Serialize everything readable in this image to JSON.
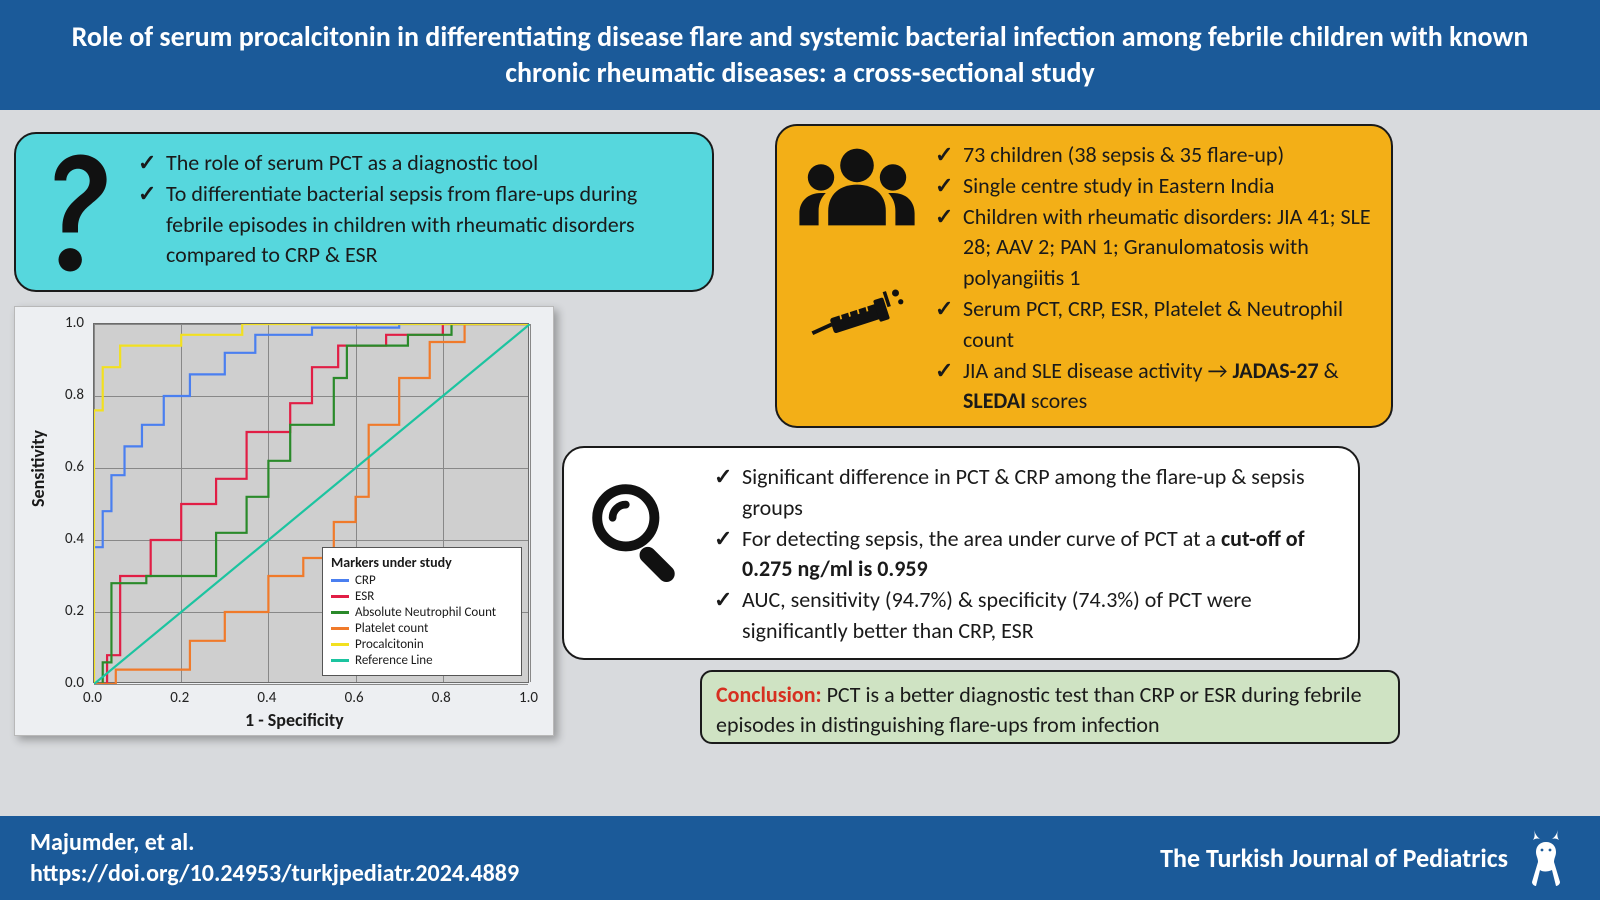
{
  "header": {
    "title": "Role of serum procalcitonin in differentiating disease flare and systemic bacterial infection among febrile children with known chronic rheumatic diseases: a cross-sectional study"
  },
  "question": {
    "lines": [
      "The role of serum PCT as a diagnostic tool",
      "To differentiate bacterial sepsis from flare-ups during febrile episodes in children with rheumatic disorders compared to CRP & ESR"
    ]
  },
  "study": {
    "lines": [
      "73 children (38 sepsis & 35 flare-up)",
      "Single centre study in Eastern India",
      "Children with rheumatic disorders: JIA 41; SLE 28; AAV 2; PAN 1; Granulomatosis with polyangiitis 1",
      "Serum PCT, CRP, ESR, Platelet & Neutrophil count",
      "JIA and SLE disease activity → JADAS-27 & SLEDAI scores"
    ],
    "bold5a": "JADAS-27",
    "bold5b": "SLEDAI"
  },
  "findings": {
    "lines": [
      "Significant difference in PCT & CRP among the flare-up & sepsis groups",
      "For detecting sepsis, the area under curve of PCT at a cut-off of 0.275 ng/ml is 0.959",
      "AUC, sensitivity (94.7%) & specificity (74.3%) of PCT were significantly better than CRP, ESR"
    ],
    "bold2": "cut-off of 0.275 ng/ml is 0.959"
  },
  "conclusion": {
    "label": "Conclusion:",
    "text": "PCT is a better diagnostic test than CRP or ESR during febrile episodes in distinguishing flare-ups from infection"
  },
  "footer": {
    "author": "Majumder, et al.",
    "doi": "https://doi.org/10.24953/turkjpediatr.2024.4889",
    "journal": "The Turkish Journal of Pediatrics"
  },
  "chart": {
    "type": "roc_step_lines",
    "xlabel": "1 - Specificity",
    "ylabel": "Sensitivity",
    "xlim": [
      0,
      1
    ],
    "ylim": [
      0,
      1
    ],
    "tick_step": 0.2,
    "background_color": "#cfcfcf",
    "grid_color": "#888888",
    "legend_title": "Markers under study",
    "series": [
      {
        "name": "CRP",
        "color": "#4a7ff0",
        "points": [
          [
            0,
            0.38
          ],
          [
            0.02,
            0.38
          ],
          [
            0.02,
            0.48
          ],
          [
            0.04,
            0.48
          ],
          [
            0.04,
            0.58
          ],
          [
            0.07,
            0.58
          ],
          [
            0.07,
            0.66
          ],
          [
            0.11,
            0.66
          ],
          [
            0.11,
            0.72
          ],
          [
            0.16,
            0.72
          ],
          [
            0.16,
            0.8
          ],
          [
            0.22,
            0.8
          ],
          [
            0.22,
            0.86
          ],
          [
            0.3,
            0.86
          ],
          [
            0.3,
            0.92
          ],
          [
            0.37,
            0.92
          ],
          [
            0.37,
            0.97
          ],
          [
            0.5,
            0.97
          ],
          [
            0.5,
            0.99
          ],
          [
            0.7,
            0.99
          ],
          [
            0.7,
            1
          ],
          [
            1,
            1
          ]
        ]
      },
      {
        "name": "ESR",
        "color": "#e11e45",
        "points": [
          [
            0,
            0
          ],
          [
            0.03,
            0
          ],
          [
            0.03,
            0.08
          ],
          [
            0.06,
            0.08
          ],
          [
            0.06,
            0.3
          ],
          [
            0.13,
            0.3
          ],
          [
            0.13,
            0.4
          ],
          [
            0.2,
            0.4
          ],
          [
            0.2,
            0.5
          ],
          [
            0.28,
            0.5
          ],
          [
            0.28,
            0.57
          ],
          [
            0.35,
            0.57
          ],
          [
            0.35,
            0.7
          ],
          [
            0.45,
            0.7
          ],
          [
            0.45,
            0.78
          ],
          [
            0.5,
            0.78
          ],
          [
            0.5,
            0.88
          ],
          [
            0.56,
            0.88
          ],
          [
            0.56,
            0.94
          ],
          [
            0.67,
            0.94
          ],
          [
            0.67,
            0.97
          ],
          [
            0.8,
            0.97
          ],
          [
            0.8,
            1
          ],
          [
            1,
            1
          ]
        ]
      },
      {
        "name": "Absolute Neutrophil Count",
        "color": "#2a8a2a",
        "points": [
          [
            0,
            0
          ],
          [
            0.02,
            0
          ],
          [
            0.02,
            0.06
          ],
          [
            0.04,
            0.06
          ],
          [
            0.04,
            0.28
          ],
          [
            0.12,
            0.28
          ],
          [
            0.12,
            0.3
          ],
          [
            0.28,
            0.3
          ],
          [
            0.28,
            0.42
          ],
          [
            0.35,
            0.42
          ],
          [
            0.35,
            0.52
          ],
          [
            0.4,
            0.52
          ],
          [
            0.4,
            0.62
          ],
          [
            0.45,
            0.62
          ],
          [
            0.45,
            0.72
          ],
          [
            0.55,
            0.72
          ],
          [
            0.55,
            0.85
          ],
          [
            0.58,
            0.85
          ],
          [
            0.58,
            0.94
          ],
          [
            0.72,
            0.94
          ],
          [
            0.72,
            0.97
          ],
          [
            0.82,
            0.97
          ],
          [
            0.82,
            1
          ],
          [
            1,
            1
          ]
        ]
      },
      {
        "name": "Platelet count",
        "color": "#f07a2a",
        "points": [
          [
            0,
            0
          ],
          [
            0.05,
            0
          ],
          [
            0.05,
            0.04
          ],
          [
            0.22,
            0.04
          ],
          [
            0.22,
            0.12
          ],
          [
            0.3,
            0.12
          ],
          [
            0.3,
            0.2
          ],
          [
            0.4,
            0.2
          ],
          [
            0.4,
            0.3
          ],
          [
            0.48,
            0.3
          ],
          [
            0.48,
            0.35
          ],
          [
            0.55,
            0.35
          ],
          [
            0.55,
            0.45
          ],
          [
            0.6,
            0.45
          ],
          [
            0.6,
            0.52
          ],
          [
            0.63,
            0.52
          ],
          [
            0.63,
            0.72
          ],
          [
            0.7,
            0.72
          ],
          [
            0.7,
            0.85
          ],
          [
            0.77,
            0.85
          ],
          [
            0.77,
            0.95
          ],
          [
            0.85,
            0.95
          ],
          [
            0.85,
            1
          ],
          [
            1,
            1
          ]
        ]
      },
      {
        "name": "Procalcitonin",
        "color": "#f2e020",
        "points": [
          [
            0,
            0
          ],
          [
            0,
            0.76
          ],
          [
            0.02,
            0.76
          ],
          [
            0.02,
            0.88
          ],
          [
            0.06,
            0.88
          ],
          [
            0.06,
            0.94
          ],
          [
            0.2,
            0.94
          ],
          [
            0.2,
            0.97
          ],
          [
            0.34,
            0.97
          ],
          [
            0.34,
            1
          ],
          [
            1,
            1
          ]
        ]
      },
      {
        "name": "Reference Line",
        "color": "#1cc4a0",
        "points": [
          [
            0,
            0
          ],
          [
            1,
            1
          ]
        ]
      }
    ]
  }
}
